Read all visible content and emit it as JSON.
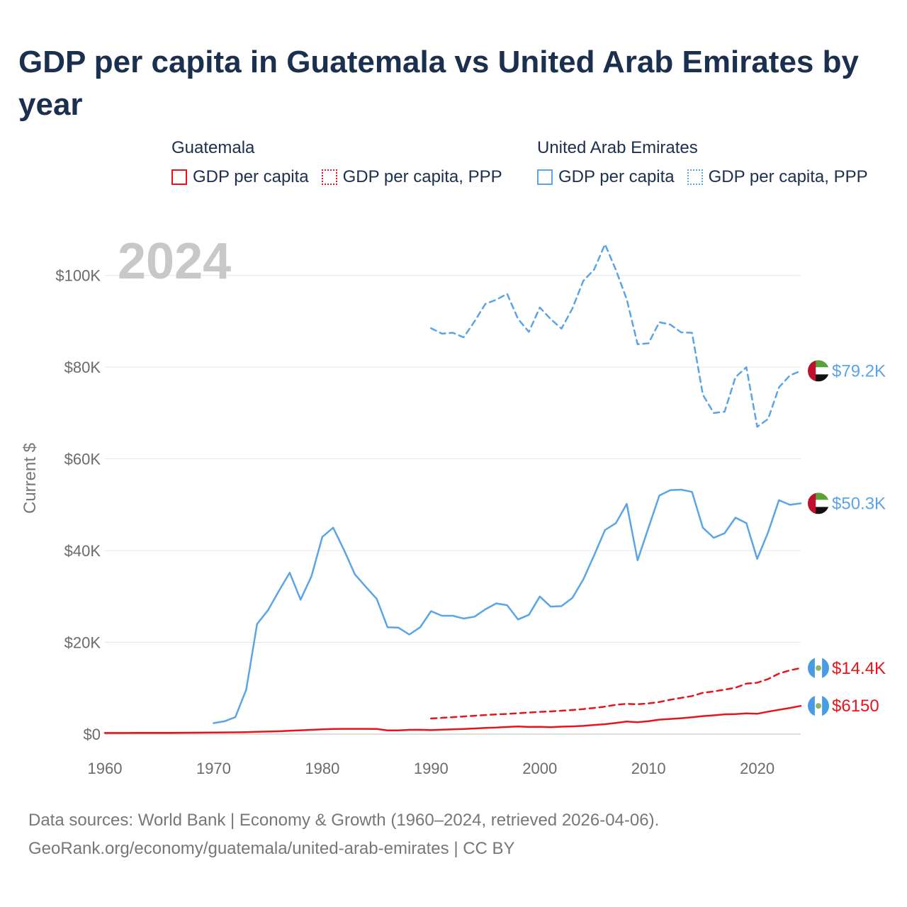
{
  "title": "GDP per capita in Guatemala vs United Arab Emirates by year",
  "legend": {
    "groups": [
      {
        "country": "Guatemala",
        "color": "#e8141b",
        "items": [
          {
            "label": "GDP per capita",
            "style": "solid"
          },
          {
            "label": "GDP per capita, PPP",
            "style": "dotted"
          }
        ]
      },
      {
        "country": "United Arab Emirates",
        "color": "#5ba4e6",
        "items": [
          {
            "label": "GDP per capita",
            "style": "solid"
          },
          {
            "label": "GDP per capita, PPP",
            "style": "dotted"
          }
        ]
      }
    ]
  },
  "year_label": "2024",
  "source": {
    "line1": "Data sources: World Bank | Economy & Growth (1960–2024, retrieved 2026-04-06).",
    "line2": "GeoRank.org/economy/guatemala/united-arab-emirates | CC BY"
  },
  "chart_data": {
    "type": "line",
    "title": "GDP per capita in Guatemala vs United Arab Emirates by year",
    "xlabel": "",
    "ylabel": "Current $",
    "xlim": [
      1960,
      2024
    ],
    "ylim": [
      0,
      110000
    ],
    "x_ticks": [
      {
        "value": 1960,
        "label": "1960"
      },
      {
        "value": 1970,
        "label": "1970"
      },
      {
        "value": 1980,
        "label": "1980"
      },
      {
        "value": 1990,
        "label": "1990"
      },
      {
        "value": 2000,
        "label": "2000"
      },
      {
        "value": 2010,
        "label": "2010"
      },
      {
        "value": 2020,
        "label": "2020"
      }
    ],
    "y_ticks": [
      {
        "value": 0,
        "label": "$0"
      },
      {
        "value": 20000,
        "label": "$20K"
      },
      {
        "value": 40000,
        "label": "$40K"
      },
      {
        "value": 60000,
        "label": "$60K"
      },
      {
        "value": 80000,
        "label": "$80K"
      },
      {
        "value": 100000,
        "label": "$100K"
      }
    ],
    "grid": true,
    "series": [
      {
        "name": "United Arab Emirates GDP per capita, PPP",
        "country": "United Arab Emirates",
        "color": "#5ba4e6",
        "dash": "dashed",
        "end_label": "$79.2K",
        "flag": "uae",
        "x": [
          1990,
          1991,
          1992,
          1993,
          1994,
          1995,
          1996,
          1997,
          1998,
          1999,
          2000,
          2001,
          2002,
          2003,
          2004,
          2005,
          2006,
          2007,
          2008,
          2009,
          2010,
          2011,
          2012,
          2013,
          2014,
          2015,
          2016,
          2017,
          2018,
          2019,
          2020,
          2021,
          2022,
          2023,
          2024
        ],
        "values": [
          88500,
          87300,
          87500,
          86500,
          90000,
          93800,
          94700,
          96000,
          90500,
          87700,
          93000,
          90500,
          88400,
          92800,
          98800,
          101300,
          106800,
          101200,
          94800,
          85000,
          85200,
          89800,
          89300,
          87600,
          87500,
          74000,
          70000,
          70300,
          77800,
          80000,
          67000,
          68700,
          75600,
          78200,
          79200
        ]
      },
      {
        "name": "United Arab Emirates GDP per capita",
        "country": "United Arab Emirates",
        "color": "#5ba4e6",
        "dash": "solid",
        "end_label": "$50.3K",
        "flag": "uae",
        "x": [
          1970,
          1971,
          1972,
          1973,
          1974,
          1975,
          1976,
          1977,
          1978,
          1979,
          1980,
          1981,
          1982,
          1983,
          1984,
          1985,
          1986,
          1987,
          1988,
          1989,
          1990,
          1991,
          1992,
          1993,
          1994,
          1995,
          1996,
          1997,
          1998,
          1999,
          2000,
          2001,
          2002,
          2003,
          2004,
          2005,
          2006,
          2007,
          2008,
          2009,
          2010,
          2011,
          2012,
          2013,
          2014,
          2015,
          2016,
          2017,
          2018,
          2019,
          2020,
          2021,
          2022,
          2023,
          2024
        ],
        "values": [
          2400,
          2800,
          3700,
          9700,
          24000,
          27000,
          31200,
          35200,
          29300,
          34400,
          43000,
          45000,
          40100,
          34800,
          32100,
          29500,
          23300,
          23200,
          21700,
          23300,
          26800,
          25800,
          25800,
          25200,
          25600,
          27200,
          28500,
          28100,
          25000,
          26000,
          30000,
          27800,
          27900,
          29700,
          33700,
          39000,
          44500,
          46000,
          50200,
          37900,
          45000,
          52000,
          53200,
          53300,
          52800,
          45000,
          42800,
          43800,
          47200,
          46000,
          38200,
          44000,
          51000,
          50000,
          50300
        ]
      },
      {
        "name": "Guatemala GDP per capita, PPP",
        "country": "Guatemala",
        "color": "#e8141b",
        "dash": "dashed",
        "end_label": "$14.4K",
        "flag": "gt",
        "x": [
          1990,
          1991,
          1992,
          1993,
          1994,
          1995,
          1996,
          1997,
          1998,
          1999,
          2000,
          2001,
          2002,
          2003,
          2004,
          2005,
          2006,
          2007,
          2008,
          2009,
          2010,
          2011,
          2012,
          2013,
          2014,
          2015,
          2016,
          2017,
          2018,
          2019,
          2020,
          2021,
          2022,
          2023,
          2024
        ],
        "values": [
          3400,
          3550,
          3700,
          3850,
          4000,
          4150,
          4300,
          4400,
          4550,
          4700,
          4850,
          4950,
          5100,
          5250,
          5450,
          5700,
          6000,
          6400,
          6600,
          6500,
          6700,
          7000,
          7500,
          7900,
          8300,
          9000,
          9300,
          9700,
          10100,
          11000,
          11200,
          12000,
          13200,
          13900,
          14400
        ]
      },
      {
        "name": "Guatemala GDP per capita",
        "country": "Guatemala",
        "color": "#e8141b",
        "dash": "solid",
        "end_label": "$6150",
        "flag": "gt",
        "x": [
          1960,
          1961,
          1962,
          1963,
          1964,
          1965,
          1966,
          1967,
          1968,
          1969,
          1970,
          1971,
          1972,
          1973,
          1974,
          1975,
          1976,
          1977,
          1978,
          1979,
          1980,
          1981,
          1982,
          1983,
          1984,
          1985,
          1986,
          1987,
          1988,
          1989,
          1990,
          1991,
          1992,
          1993,
          1994,
          1995,
          1996,
          1997,
          1998,
          1999,
          2000,
          2001,
          2002,
          2003,
          2004,
          2005,
          2006,
          2007,
          2008,
          2009,
          2010,
          2011,
          2012,
          2013,
          2014,
          2015,
          2016,
          2017,
          2018,
          2019,
          2020,
          2021,
          2022,
          2023,
          2024
        ],
        "values": [
          240,
          245,
          250,
          258,
          265,
          275,
          285,
          295,
          310,
          325,
          350,
          365,
          380,
          420,
          500,
          560,
          620,
          720,
          830,
          920,
          1050,
          1130,
          1140,
          1140,
          1150,
          1130,
          820,
          820,
          920,
          940,
          860,
          960,
          1050,
          1110,
          1220,
          1350,
          1420,
          1560,
          1650,
          1560,
          1570,
          1500,
          1620,
          1690,
          1790,
          1990,
          2160,
          2420,
          2730,
          2600,
          2830,
          3150,
          3300,
          3460,
          3680,
          3920,
          4090,
          4310,
          4370,
          4520,
          4430,
          4900,
          5300,
          5700,
          6150
        ]
      }
    ]
  }
}
